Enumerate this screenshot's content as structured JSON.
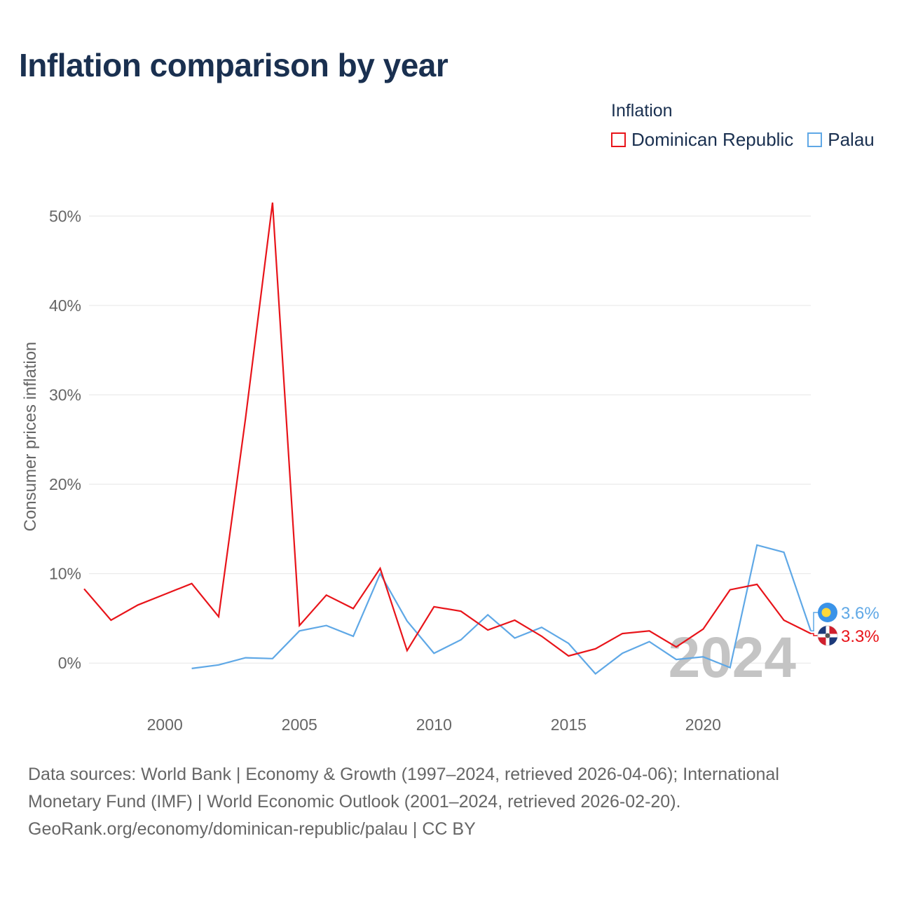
{
  "title": "Inflation comparison by year",
  "legend": {
    "title": "Inflation",
    "items": [
      {
        "label": "Dominican Republic",
        "color": "#e8141a"
      },
      {
        "label": "Palau",
        "color": "#5fa8e6"
      }
    ]
  },
  "chart_data": {
    "type": "line",
    "title": "Inflation comparison by year",
    "xlabel": "",
    "ylabel": "Consumer prices inflation",
    "xlim": [
      1997,
      2024
    ],
    "ylim": [
      -5,
      53
    ],
    "grid": true,
    "legend_position": "top-right",
    "x_ticks": [
      2000,
      2005,
      2010,
      2015,
      2020
    ],
    "x_tick_labels": [
      "2000",
      "2005",
      "2010",
      "2015",
      "2020"
    ],
    "y_ticks": [
      0,
      10,
      20,
      30,
      40,
      50
    ],
    "y_tick_labels": [
      "0%",
      "10%",
      "20%",
      "30%",
      "40%",
      "50%"
    ],
    "year_watermark": "2024",
    "series": [
      {
        "name": "Dominican Republic",
        "color": "#e8141a",
        "end_label": "3.3%",
        "flag_icon": "dominican-republic-flag-icon",
        "x": [
          1997,
          1998,
          1999,
          2000,
          2001,
          2002,
          2003,
          2004,
          2005,
          2006,
          2007,
          2008,
          2009,
          2010,
          2011,
          2012,
          2013,
          2014,
          2015,
          2016,
          2017,
          2018,
          2019,
          2020,
          2021,
          2022,
          2023,
          2024
        ],
        "values": [
          8.3,
          4.8,
          6.5,
          7.7,
          8.9,
          5.2,
          27.4,
          51.5,
          4.2,
          7.6,
          6.1,
          10.6,
          1.4,
          6.3,
          5.8,
          3.7,
          4.8,
          3.0,
          0.8,
          1.6,
          3.3,
          3.6,
          1.8,
          3.8,
          8.2,
          8.8,
          4.8,
          3.3
        ]
      },
      {
        "name": "Palau",
        "color": "#5fa8e6",
        "end_label": "3.6%",
        "flag_icon": "palau-flag-icon",
        "x": [
          2001,
          2002,
          2003,
          2004,
          2005,
          2006,
          2007,
          2008,
          2009,
          2010,
          2011,
          2012,
          2013,
          2014,
          2015,
          2016,
          2017,
          2018,
          2019,
          2020,
          2021,
          2022,
          2023,
          2024
        ],
        "values": [
          -0.6,
          -0.2,
          0.6,
          0.5,
          3.6,
          4.2,
          3.0,
          10.0,
          4.7,
          1.1,
          2.6,
          5.4,
          2.8,
          4.0,
          2.2,
          -1.2,
          1.1,
          2.4,
          0.4,
          0.7,
          -0.5,
          13.2,
          12.4,
          3.6
        ]
      }
    ]
  },
  "footer": {
    "line1": "Data sources: World Bank | Economy & Growth (1997–2024, retrieved 2026-04-06); International",
    "line2": "Monetary Fund (IMF) | World Economic Outlook (2001–2024, retrieved 2026-02-20).",
    "line3": "GeoRank.org/economy/dominican-republic/palau | CC BY"
  }
}
